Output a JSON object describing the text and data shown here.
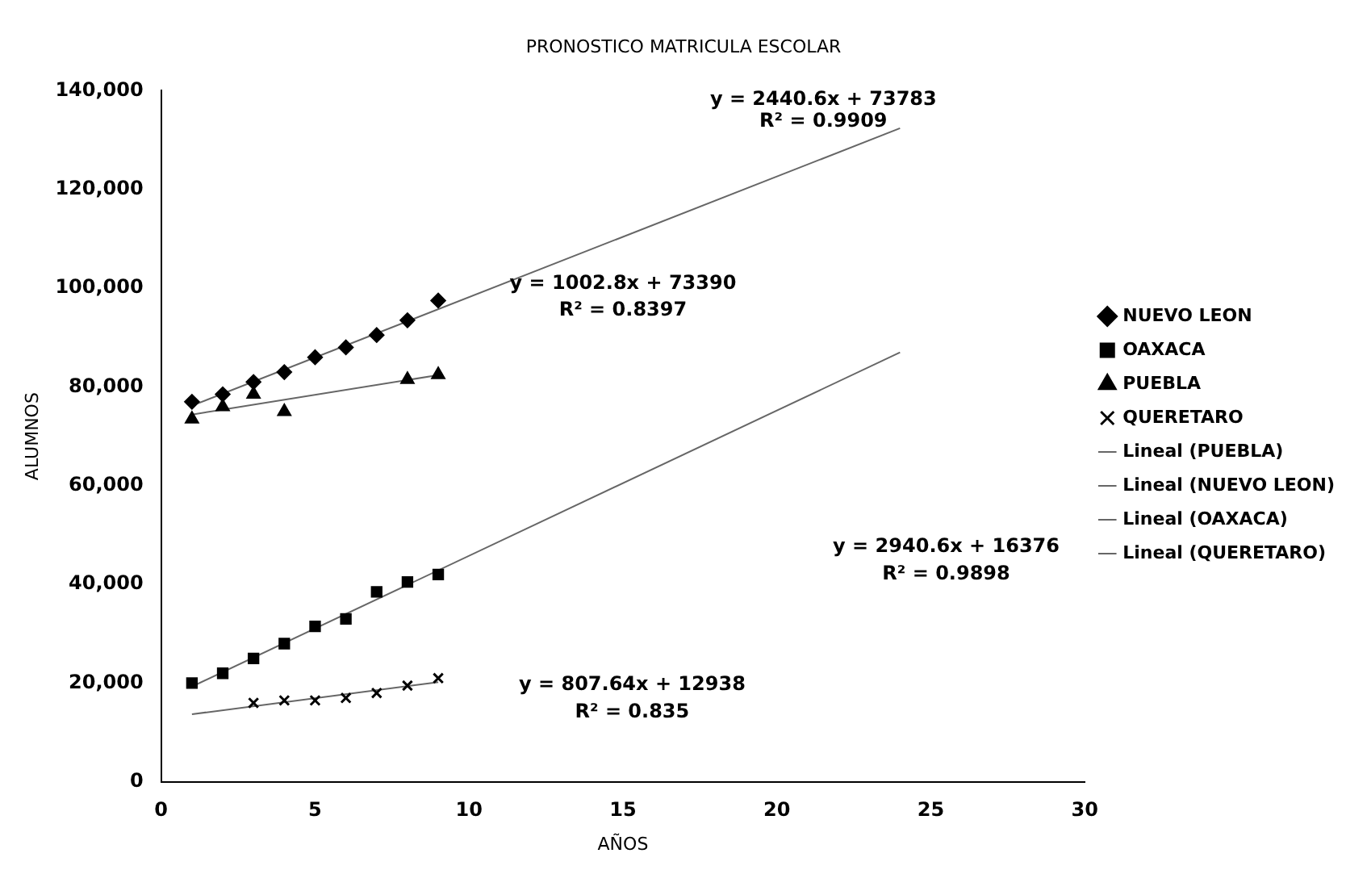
{
  "chart_data": {
    "type": "scatter",
    "title": "PRONOSTICO MATRICULA ESCOLAR",
    "xlabel": "AÑOS",
    "ylabel": "ALUMNOS",
    "series": [
      {
        "name": "NUEVO LEON",
        "type": "scatter",
        "marker": "diamond",
        "color": "#000000",
        "x": [
          1,
          2,
          3,
          4,
          5,
          6,
          7,
          8,
          9
        ],
        "values": [
          77000,
          78500,
          81000,
          83000,
          86000,
          88000,
          90500,
          93500,
          97500
        ]
      },
      {
        "name": "OAXACA",
        "type": "scatter",
        "marker": "square",
        "color": "#000000",
        "x": [
          1,
          2,
          3,
          4,
          5,
          6,
          7,
          8,
          9
        ],
        "values": [
          20000,
          22000,
          25000,
          28000,
          31500,
          33000,
          38500,
          40500,
          42000
        ]
      },
      {
        "name": "PUEBLA",
        "type": "scatter",
        "marker": "triangle",
        "color": "#000000",
        "x": [
          1,
          2,
          3,
          4,
          8,
          9
        ],
        "values": [
          73500,
          76000,
          78500,
          75000,
          81500,
          82500
        ]
      },
      {
        "name": "QUERETARO",
        "type": "scatter",
        "marker": "cross",
        "color": "#000000",
        "x": [
          3,
          4,
          5,
          6,
          7,
          8,
          9
        ],
        "values": [
          16000,
          16500,
          16500,
          17000,
          18000,
          19500,
          21000
        ]
      },
      {
        "name": "Lineal (PUEBLA)",
        "type": "line",
        "marker": "none",
        "color": "#666666",
        "x": [
          1,
          9
        ],
        "values": [
          74400,
          82400
        ]
      },
      {
        "name": "Lineal (NUEVO LEON)",
        "type": "line",
        "marker": "none",
        "color": "#666666",
        "x": [
          1,
          24
        ],
        "values": [
          76200,
          132400
        ]
      },
      {
        "name": "Lineal (OAXACA)",
        "type": "line",
        "marker": "none",
        "color": "#666666",
        "x": [
          1,
          24
        ],
        "values": [
          19300,
          87000
        ]
      },
      {
        "name": "Lineal (QUERETARO)",
        "type": "line",
        "marker": "none",
        "color": "#666666",
        "x": [
          1,
          9
        ],
        "values": [
          13700,
          20200
        ]
      }
    ],
    "xlim": [
      0,
      30
    ],
    "xticks": [
      0,
      5,
      10,
      15,
      20,
      25,
      30
    ],
    "ylim": [
      0,
      140000
    ],
    "yticks": [
      0,
      {
        "value": 20000,
        "label": "20,000"
      },
      {
        "value": 40000,
        "label": "40,000"
      },
      {
        "value": 60000,
        "label": "60,000"
      },
      {
        "value": 80000,
        "label": "80,000"
      },
      {
        "value": 100000,
        "label": "100,000"
      },
      {
        "value": 120000,
        "label": "120,000"
      },
      {
        "value": 140000,
        "label": "140,000"
      }
    ],
    "grid": false,
    "legend": "right",
    "annotations": [
      "y = 2440.6x + 73783",
      "R² = 0.9909",
      "y = 1002.8x + 73390",
      "R² = 0.8397",
      "y = 2940.6x + 16376",
      "R² = 0.9898",
      "y = 807.64x + 12938",
      "R² = 0.835"
    ]
  }
}
